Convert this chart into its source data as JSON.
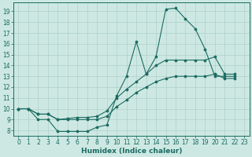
{
  "xlabel": "Humidex (Indice chaleur)",
  "xlim": [
    -0.5,
    23.5
  ],
  "ylim": [
    7.5,
    19.8
  ],
  "xticks": [
    0,
    1,
    2,
    3,
    4,
    5,
    6,
    7,
    8,
    9,
    10,
    11,
    12,
    13,
    14,
    15,
    16,
    17,
    18,
    19,
    20,
    21,
    22,
    23
  ],
  "yticks": [
    8,
    9,
    10,
    11,
    12,
    13,
    14,
    15,
    16,
    17,
    18,
    19
  ],
  "bg_color": "#cde8e2",
  "line_color": "#1a6b62",
  "grid_color": "#aed0ca",
  "curves": [
    {
      "x": [
        0,
        1,
        2,
        3,
        4,
        5,
        6,
        7,
        8,
        9,
        10,
        11,
        12,
        13,
        14,
        15,
        16,
        17,
        18,
        19,
        20,
        21,
        22
      ],
      "y": [
        10,
        10,
        9,
        9,
        7.9,
        7.9,
        7.9,
        7.9,
        8.3,
        8.5,
        11.2,
        13.0,
        16.2,
        13.2,
        14.8,
        19.2,
        19.3,
        18.3,
        17.4,
        15.5,
        13.0,
        13.0,
        13.0
      ]
    },
    {
      "x": [
        0,
        1,
        2,
        3,
        4,
        5,
        6,
        7,
        8,
        9,
        10,
        11,
        12,
        13,
        14,
        15,
        16,
        17,
        18,
        19,
        20,
        21,
        22
      ],
      "y": [
        10,
        10,
        9.5,
        9.5,
        9.0,
        9.1,
        9.2,
        9.2,
        9.3,
        9.8,
        11.0,
        11.8,
        12.5,
        13.2,
        14.0,
        14.5,
        14.5,
        14.5,
        14.5,
        14.5,
        14.8,
        13.2,
        13.2
      ]
    },
    {
      "x": [
        0,
        1,
        2,
        3,
        4,
        5,
        6,
        7,
        8,
        9,
        10,
        11,
        12,
        13,
        14,
        15,
        16,
        17,
        18,
        19,
        20,
        21,
        22
      ],
      "y": [
        10,
        10,
        9.5,
        9.5,
        9.0,
        9.0,
        9.0,
        9.0,
        9.0,
        9.3,
        10.2,
        10.8,
        11.5,
        12.0,
        12.5,
        12.8,
        13.0,
        13.0,
        13.0,
        13.0,
        13.2,
        12.8,
        12.8
      ]
    }
  ],
  "tick_fontsize": 5.5,
  "xlabel_fontsize": 6.5
}
